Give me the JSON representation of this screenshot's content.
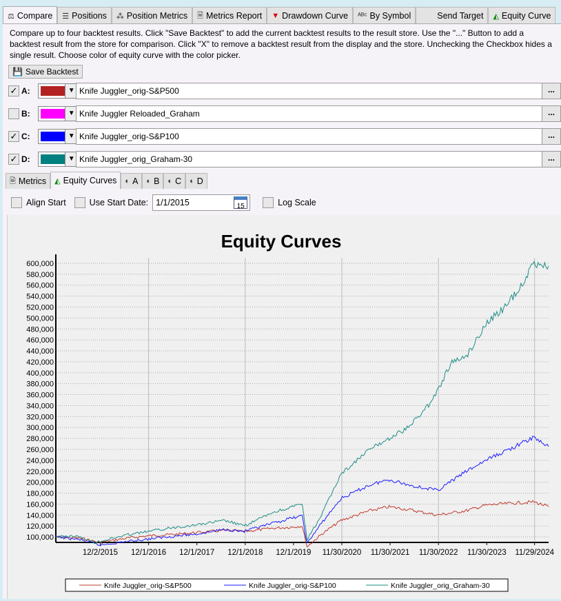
{
  "tabs": [
    {
      "label": "Compare",
      "icon": "compare-icon"
    },
    {
      "label": "Positions",
      "icon": "list-icon"
    },
    {
      "label": "Position Metrics",
      "icon": "scatter-icon"
    },
    {
      "label": "Metrics Report",
      "icon": "document-icon"
    },
    {
      "label": "Drawdown Curve",
      "icon": "drawdown-icon"
    },
    {
      "label": "By Symbol",
      "icon": "abc-icon"
    },
    {
      "label": "Send Target",
      "icon": ""
    },
    {
      "label": "Equity Curve",
      "icon": "area-chart-icon"
    }
  ],
  "description": "Compare up to four backtest results. Click \"Save Backtest\" to add the current backtest results to the result store. Use the \"...\" Button to add a backtest result from the store for comparison. Click \"X\" to remove a backtest result from the display and the store. Unchecking the Checkbox hides a single result. Choose color of equity curve with the color picker.",
  "save_label": "Save Backtest",
  "results": [
    {
      "label": "A:",
      "checked": true,
      "color": "#b22222",
      "name": "Knife Juggler_orig-S&P500"
    },
    {
      "label": "B:",
      "checked": false,
      "color": "#ff00ff",
      "name": "Knife Juggler Reloaded_Graham"
    },
    {
      "label": "C:",
      "checked": true,
      "color": "#0000ff",
      "name": "Knife Juggler_orig-S&P100"
    },
    {
      "label": "D:",
      "checked": true,
      "color": "#008080",
      "name": "Knife Juggler_orig_Graham-30"
    }
  ],
  "dots_label": "...",
  "subtabs": [
    "Metrics",
    "Equity Curves",
    "A",
    "B",
    "C",
    "D"
  ],
  "options": {
    "align_start": "Align Start",
    "use_start_date": "Use Start Date:",
    "start_date": "1/1/2015",
    "log_scale": "Log Scale",
    "calendar_day": "15"
  },
  "chart_data": {
    "type": "line",
    "title": "Equity Curves",
    "ylim": [
      90000,
      610000
    ],
    "xlim": [
      2015.0,
      2025.2
    ],
    "yticks": [
      100000,
      120000,
      140000,
      160000,
      180000,
      200000,
      220000,
      240000,
      260000,
      280000,
      300000,
      320000,
      340000,
      360000,
      380000,
      400000,
      420000,
      440000,
      460000,
      480000,
      500000,
      520000,
      540000,
      560000,
      580000,
      600000
    ],
    "ytick_labels": [
      "100,000",
      "120,000",
      "140,000",
      "160,000",
      "180,000",
      "200,000",
      "220,000",
      "240,000",
      "260,000",
      "280,000",
      "300,000",
      "320,000",
      "340,000",
      "360,000",
      "380,000",
      "400,000",
      "420,000",
      "440,000",
      "460,000",
      "480,000",
      "500,000",
      "520,000",
      "540,000",
      "560,000",
      "580,000",
      "600,000"
    ],
    "xticks": [
      2015.92,
      2016.92,
      2017.92,
      2018.92,
      2019.92,
      2020.92,
      2021.92,
      2022.92,
      2023.92,
      2024.91
    ],
    "xtick_labels": [
      "12/2/2015",
      "12/1/2016",
      "12/1/2017",
      "12/1/2018",
      "12/1/2019",
      "11/30/2020",
      "11/30/2021",
      "11/30/2022",
      "11/30/2023",
      "11/29/2024"
    ],
    "series": [
      {
        "name": "Knife Juggler_orig-S&P500",
        "color": "#c0392b",
        "x": [
          2015.0,
          2015.5,
          2015.9,
          2016.5,
          2016.9,
          2017.5,
          2017.9,
          2018.5,
          2018.9,
          2019.5,
          2019.9,
          2020.1,
          2020.2,
          2020.5,
          2020.9,
          2021.5,
          2021.9,
          2022.3,
          2022.9,
          2023.5,
          2023.9,
          2024.5,
          2024.9,
          2025.2
        ],
        "y": [
          100000,
          98000,
          90000,
          98000,
          102000,
          105000,
          108000,
          112000,
          110000,
          116000,
          118000,
          120000,
          82000,
          105000,
          130000,
          148000,
          155000,
          150000,
          140000,
          148000,
          158000,
          162000,
          164000,
          155000
        ]
      },
      {
        "name": "Knife Juggler_orig-S&P100",
        "color": "#1a1aff",
        "x": [
          2015.0,
          2015.5,
          2015.9,
          2016.5,
          2016.9,
          2017.5,
          2017.9,
          2018.5,
          2018.9,
          2019.5,
          2019.9,
          2020.1,
          2020.2,
          2020.5,
          2020.9,
          2021.5,
          2021.9,
          2022.3,
          2022.9,
          2023.5,
          2023.9,
          2024.5,
          2024.9,
          2025.2
        ],
        "y": [
          100000,
          95000,
          85000,
          92000,
          96000,
          102000,
          105000,
          114000,
          110000,
          125000,
          135000,
          138000,
          88000,
          125000,
          170000,
          195000,
          205000,
          195000,
          185000,
          220000,
          240000,
          265000,
          282000,
          265000
        ]
      },
      {
        "name": "Knife Juggler_orig_Graham-30",
        "color": "#1e8c85",
        "x": [
          2015.0,
          2015.4,
          2015.8,
          2016.5,
          2016.9,
          2017.5,
          2017.9,
          2018.5,
          2018.9,
          2019.5,
          2019.9,
          2020.1,
          2020.2,
          2020.5,
          2020.9,
          2021.5,
          2021.9,
          2022.3,
          2022.8,
          2023.2,
          2023.5,
          2023.9,
          2024.3,
          2024.6,
          2024.9,
          2025.2
        ],
        "y": [
          100000,
          102000,
          90000,
          104000,
          110000,
          118000,
          122000,
          130000,
          120000,
          145000,
          155000,
          160000,
          95000,
          140000,
          215000,
          260000,
          280000,
          300000,
          350000,
          420000,
          430000,
          490000,
          520000,
          555000,
          600000,
          595000
        ]
      }
    ]
  }
}
